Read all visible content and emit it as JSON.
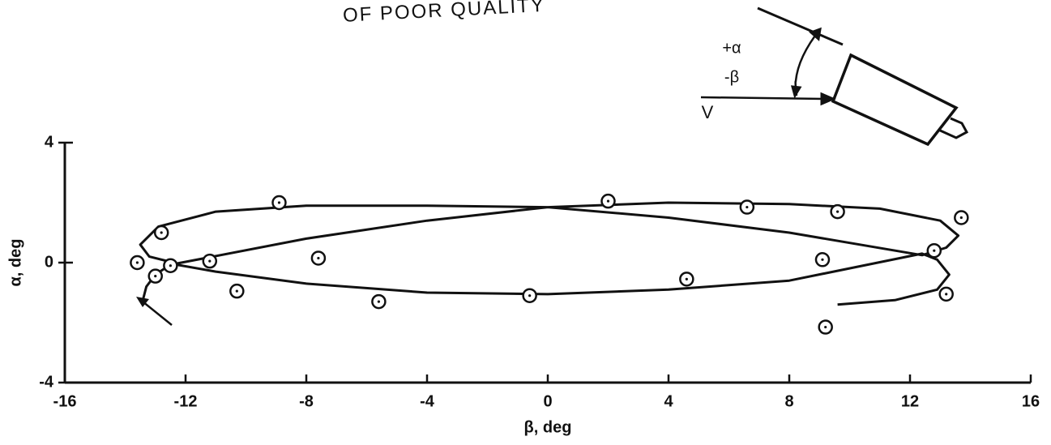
{
  "chart_data": {
    "type": "scatter",
    "stamp": "OF POOR QUALITY",
    "inset_labels": [
      "+α",
      "-β",
      "V"
    ],
    "x_label": "β, deg",
    "y_label": "α, deg",
    "xlim": [
      -16,
      16
    ],
    "ylim": [
      -4,
      4
    ],
    "xticks": [
      -16,
      -12,
      -8,
      -4,
      0,
      4,
      8,
      12,
      16
    ],
    "yticks": [
      -4,
      0,
      4
    ],
    "color": "#111111",
    "x": [
      -13.6,
      -13.0,
      -12.8,
      -12.5,
      -11.2,
      -10.3,
      -8.9,
      -7.6,
      -5.6,
      -0.6,
      2.0,
      4.6,
      6.6,
      9.1,
      9.2,
      9.6,
      12.8,
      13.2,
      13.7
    ],
    "values": [
      0.0,
      -0.45,
      1.0,
      -0.1,
      0.05,
      -0.95,
      2.0,
      0.15,
      -1.3,
      -1.1,
      2.05,
      -0.55,
      1.85,
      0.1,
      -2.15,
      1.7,
      0.4,
      -1.05,
      1.5
    ],
    "curve": {
      "x": [
        9.6,
        11.5,
        12.9,
        13.3,
        12.9,
        12.4,
        8,
        4,
        0,
        -4,
        -8,
        -11,
        -12.4,
        -8,
        -4,
        0,
        4,
        8,
        11,
        13,
        13.6,
        13.2,
        12.4,
        8,
        4,
        0,
        -4,
        -8,
        -11,
        -12.9,
        -13.5,
        -13.2,
        -12.4,
        -13.0,
        -13.3,
        -13.4
      ],
      "y": [
        -1.4,
        -1.25,
        -0.9,
        -0.4,
        0.1,
        0.3,
        -0.6,
        -0.9,
        -1.05,
        -1.0,
        -0.7,
        -0.3,
        -0.05,
        0.8,
        1.4,
        1.85,
        2.0,
        1.95,
        1.8,
        1.4,
        0.9,
        0.5,
        0.25,
        1.0,
        1.5,
        1.85,
        1.9,
        1.9,
        1.7,
        1.2,
        0.6,
        0.2,
        0.0,
        -0.4,
        -0.8,
        -1.2
      ]
    }
  }
}
